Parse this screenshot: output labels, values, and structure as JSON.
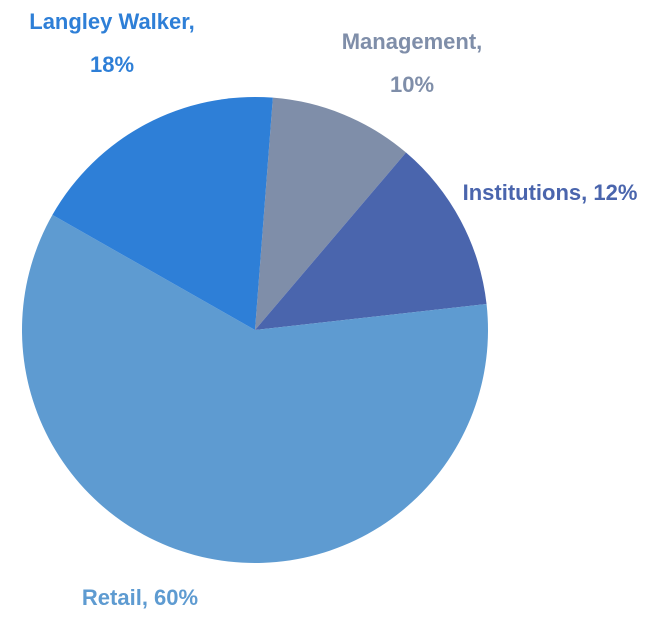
{
  "chart_data": {
    "type": "pie",
    "categories": [
      "Management",
      "Institutions",
      "Retail",
      "Langley Walker"
    ],
    "values": [
      10,
      12,
      60,
      18
    ],
    "value_labels": [
      "Management, 10%",
      "Institutions, 12%",
      "Retail, 60%",
      "Langley Walker, 18%"
    ],
    "colors": [
      "#7f8ea9",
      "#4a65ad",
      "#5e9bd1",
      "#2e7fd7"
    ]
  }
}
